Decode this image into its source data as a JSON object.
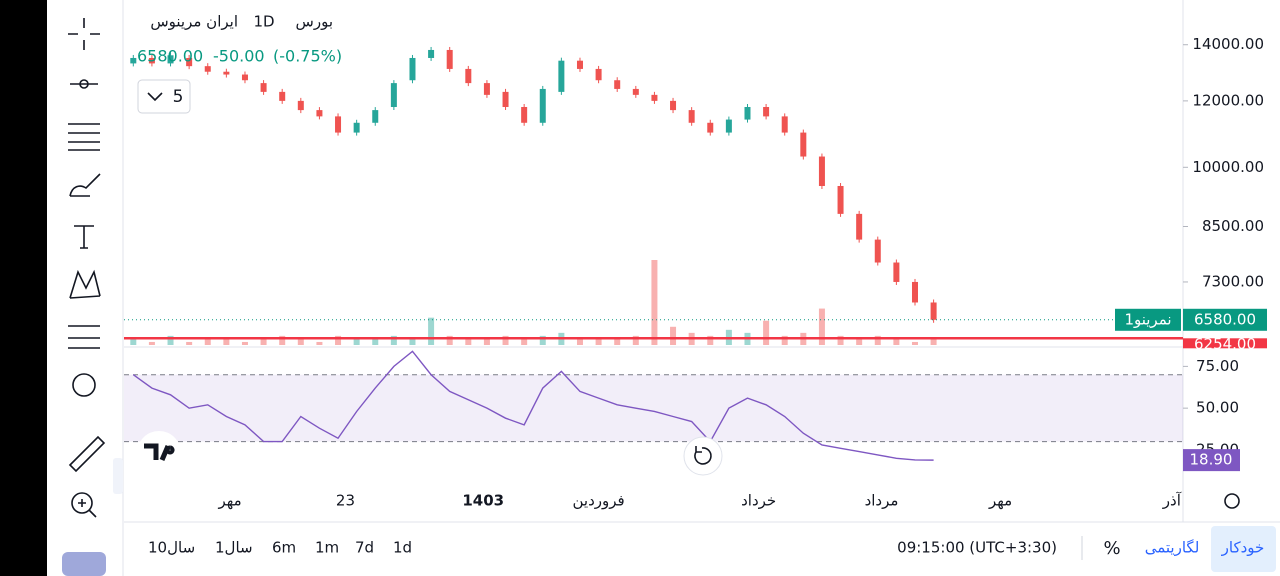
{
  "header": {
    "exchange": "بورس",
    "interval": "1D",
    "symbol": "ایران مرینوس",
    "close": "6580.00",
    "change": "-50.00",
    "change_pct": "(-0.75%)",
    "indicator_count": "5"
  },
  "chart_data": {
    "type": "candlestick",
    "log": true,
    "opens": [
      13300,
      13500,
      13300,
      13500,
      13200,
      13000,
      12900,
      12600,
      12300,
      12000,
      11700,
      11500,
      11000,
      11300,
      11800,
      12700,
      13500,
      13800,
      13100,
      12600,
      12300,
      11800,
      11300,
      12300,
      13400,
      13100,
      12700,
      12400,
      12200,
      12000,
      11700,
      11300,
      11000,
      11400,
      11800,
      11500,
      11000,
      10300,
      9500,
      8800,
      8200,
      7700,
      7300,
      6900
    ],
    "closes": [
      13500,
      13300,
      13600,
      13200,
      13000,
      12900,
      12700,
      12300,
      12000,
      11700,
      11500,
      11000,
      11300,
      11700,
      12600,
      13500,
      13800,
      13100,
      12600,
      12200,
      11800,
      11300,
      12400,
      13400,
      13100,
      12700,
      12400,
      12200,
      12000,
      11700,
      11300,
      11000,
      11400,
      11800,
      11500,
      11000,
      10300,
      9500,
      8800,
      8200,
      7700,
      7300,
      6900,
      6580
    ],
    "volumes": [
      2,
      1,
      3,
      1,
      2,
      2,
      1,
      2,
      3,
      2,
      1,
      3,
      2,
      2,
      3,
      2,
      9,
      3,
      2,
      2,
      3,
      2,
      3,
      4,
      2,
      2,
      2,
      3,
      28,
      6,
      4,
      3,
      5,
      4,
      8,
      3,
      4,
      12,
      3,
      2,
      3,
      2,
      1,
      2
    ],
    "up_color": "#26a69a",
    "down_color": "#ef5350",
    "ylim": [
      6140,
      15400
    ],
    "yticks": [
      {
        "value": 14000,
        "label": "14000.00"
      },
      {
        "value": 12000,
        "label": "12000.00"
      },
      {
        "value": 10000,
        "label": "10000.00"
      },
      {
        "value": 8500,
        "label": "8500.00"
      },
      {
        "value": 7300,
        "label": "7300.00"
      }
    ],
    "xlim": [
      -0.5,
      56.4
    ],
    "xticks": [
      {
        "value": 5.2,
        "label": "مهر"
      },
      {
        "value": 11.4,
        "label": "23"
      },
      {
        "value": 18.8,
        "label": "1403"
      },
      {
        "value": 25,
        "label": "فروردین"
      },
      {
        "value": 33.6,
        "label": "خرداد"
      },
      {
        "value": 40.2,
        "label": "مرداد"
      },
      {
        "value": 46.6,
        "label": "مهر"
      },
      {
        "value": 55.8,
        "label": "آذر"
      }
    ],
    "last_price": {
      "value": 6580,
      "label": "6580.00",
      "name": "نمرینو1",
      "color": "#089981"
    },
    "hline": {
      "value": 6254,
      "label": "6254.00",
      "color": "#f23645"
    },
    "rsi": {
      "values": [
        70,
        62,
        58,
        50,
        52,
        45,
        40,
        30,
        30,
        45,
        38,
        32,
        48,
        62,
        75,
        84,
        70,
        60,
        55,
        50,
        44,
        40,
        62,
        72,
        60,
        56,
        52,
        50,
        48,
        45,
        42,
        30,
        50,
        56,
        52,
        45,
        35,
        28,
        26,
        24,
        22,
        20,
        19,
        18.9
      ],
      "ylim": [
        7,
        86
      ],
      "yticks": [
        {
          "value": 75,
          "label": "75.00"
        },
        {
          "value": 50,
          "label": "50.00"
        },
        {
          "value": 25,
          "label": "25.00"
        }
      ],
      "bands": [
        30,
        70
      ],
      "last_label": "18.90",
      "color": "#7e57c2"
    }
  },
  "bottom_bar": {
    "ranges": [
      "10سال",
      "1سال",
      "6m",
      "1m",
      "7d",
      "1d"
    ],
    "time": "09:15:00 (UTC+3:30)",
    "percent": "%",
    "log": "لگاریتمی",
    "auto": "خودکار"
  }
}
